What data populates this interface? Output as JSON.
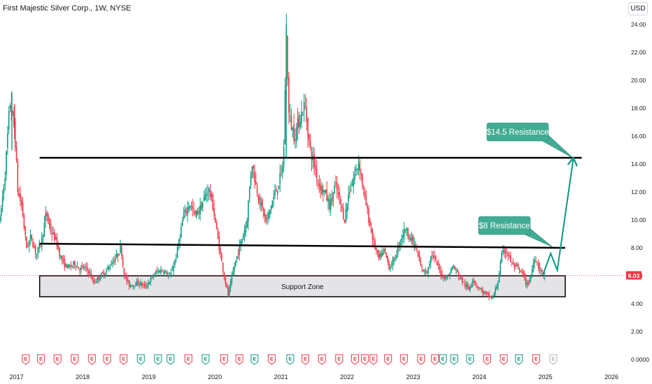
{
  "header": {
    "title": "First Majestic Silver Corp., 1W, NYSE",
    "currency": "USD"
  },
  "colors": {
    "up": "#089981",
    "down": "#f23645",
    "price_line": "#f23645",
    "callout": "#42ab94",
    "arrow": "#089981",
    "earnings_red": "#f23645",
    "earnings_green": "#089981"
  },
  "chart_data": {
    "type": "candlestick",
    "symbol": "First Majestic Silver Corp.",
    "interval": "1W",
    "exchange": "NYSE",
    "currency": "USD",
    "last_price": 6.03,
    "last_price_label": "6.03",
    "ylim": [
      0,
      25
    ],
    "xlim": [
      2016.75,
      2026.2
    ],
    "y_ticks": [
      {
        "value": 0,
        "label": "0.0000"
      },
      {
        "value": 2,
        "label": "2.00"
      },
      {
        "value": 4,
        "label": "4.00"
      },
      {
        "value": 6,
        "label": "6.00"
      },
      {
        "value": 8,
        "label": "8.00"
      },
      {
        "value": 10,
        "label": "10.00"
      },
      {
        "value": 12,
        "label": "12.00"
      },
      {
        "value": 14,
        "label": "14.00"
      },
      {
        "value": 16,
        "label": "16.00"
      },
      {
        "value": 18,
        "label": "18.00"
      },
      {
        "value": 20,
        "label": "20.00"
      },
      {
        "value": 22,
        "label": "22.00"
      },
      {
        "value": 24,
        "label": "24.00"
      }
    ],
    "x_ticks": [
      {
        "value": 2017,
        "label": "2017"
      },
      {
        "value": 2018,
        "label": "2018"
      },
      {
        "value": 2019,
        "label": "2019"
      },
      {
        "value": 2020,
        "label": "2020"
      },
      {
        "value": 2021,
        "label": "2021"
      },
      {
        "value": 2022,
        "label": "2022"
      },
      {
        "value": 2023,
        "label": "2023"
      },
      {
        "value": 2024,
        "label": "2024"
      },
      {
        "value": 2025,
        "label": "2025"
      },
      {
        "value": 2026,
        "label": "2026"
      }
    ],
    "price_path": [
      [
        2016.75,
        10.0
      ],
      [
        2016.83,
        13.5
      ],
      [
        2016.9,
        18.5
      ],
      [
        2016.97,
        16.5
      ],
      [
        2017.02,
        12.0
      ],
      [
        2017.08,
        11.0
      ],
      [
        2017.15,
        8.0
      ],
      [
        2017.22,
        8.8
      ],
      [
        2017.3,
        7.5
      ],
      [
        2017.38,
        8.6
      ],
      [
        2017.45,
        10.5
      ],
      [
        2017.52,
        9.2
      ],
      [
        2017.6,
        8.5
      ],
      [
        2017.66,
        7.4
      ],
      [
        2017.72,
        6.8
      ],
      [
        2017.8,
        6.6
      ],
      [
        2017.88,
        6.9
      ],
      [
        2017.95,
        6.5
      ],
      [
        2018.02,
        6.6
      ],
      [
        2018.1,
        6.3
      ],
      [
        2018.16,
        5.5
      ],
      [
        2018.25,
        5.9
      ],
      [
        2018.35,
        6.3
      ],
      [
        2018.45,
        7.0
      ],
      [
        2018.52,
        7.4
      ],
      [
        2018.58,
        8.1
      ],
      [
        2018.62,
        6.2
      ],
      [
        2018.7,
        5.3
      ],
      [
        2018.85,
        5.5
      ],
      [
        2018.95,
        5.2
      ],
      [
        2019.02,
        5.7
      ],
      [
        2019.12,
        6.3
      ],
      [
        2019.22,
        6.4
      ],
      [
        2019.32,
        5.9
      ],
      [
        2019.42,
        7.5
      ],
      [
        2019.52,
        10.2
      ],
      [
        2019.62,
        11.2
      ],
      [
        2019.7,
        10.3
      ],
      [
        2019.8,
        11.0
      ],
      [
        2019.9,
        12.3
      ],
      [
        2019.96,
        11.3
      ],
      [
        2020.05,
        8.5
      ],
      [
        2020.12,
        6.5
      ],
      [
        2020.2,
        4.6
      ],
      [
        2020.3,
        6.8
      ],
      [
        2020.4,
        8.5
      ],
      [
        2020.48,
        9.8
      ],
      [
        2020.56,
        14.2
      ],
      [
        2020.62,
        12.5
      ],
      [
        2020.7,
        11.0
      ],
      [
        2020.78,
        9.8
      ],
      [
        2020.86,
        11.2
      ],
      [
        2020.94,
        12.3
      ],
      [
        2021.0,
        13.2
      ],
      [
        2021.04,
        14.5
      ],
      [
        2021.08,
        23.5
      ],
      [
        2021.12,
        17.5
      ],
      [
        2021.2,
        16.0
      ],
      [
        2021.28,
        17.2
      ],
      [
        2021.36,
        18.3
      ],
      [
        2021.44,
        15.0
      ],
      [
        2021.5,
        14.0
      ],
      [
        2021.58,
        12.5
      ],
      [
        2021.66,
        12.0
      ],
      [
        2021.74,
        11.0
      ],
      [
        2021.82,
        12.5
      ],
      [
        2021.9,
        11.2
      ],
      [
        2021.96,
        10.0
      ],
      [
        2022.02,
        11.8
      ],
      [
        2022.1,
        13.0
      ],
      [
        2022.18,
        14.2
      ],
      [
        2022.25,
        12.0
      ],
      [
        2022.33,
        10.0
      ],
      [
        2022.4,
        8.4
      ],
      [
        2022.48,
        7.2
      ],
      [
        2022.56,
        7.8
      ],
      [
        2022.64,
        6.6
      ],
      [
        2022.72,
        7.2
      ],
      [
        2022.8,
        8.5
      ],
      [
        2022.88,
        9.4
      ],
      [
        2022.96,
        8.7
      ],
      [
        2023.04,
        8.0
      ],
      [
        2023.12,
        6.5
      ],
      [
        2023.2,
        6.2
      ],
      [
        2023.28,
        7.6
      ],
      [
        2023.36,
        6.8
      ],
      [
        2023.44,
        6.0
      ],
      [
        2023.52,
        5.9
      ],
      [
        2023.6,
        6.7
      ],
      [
        2023.68,
        6.1
      ],
      [
        2023.76,
        5.5
      ],
      [
        2023.84,
        5.0
      ],
      [
        2023.9,
        5.8
      ],
      [
        2023.96,
        5.3
      ],
      [
        2024.04,
        4.9
      ],
      [
        2024.12,
        4.6
      ],
      [
        2024.2,
        4.4
      ],
      [
        2024.28,
        5.5
      ],
      [
        2024.34,
        7.5
      ],
      [
        2024.4,
        7.9
      ],
      [
        2024.5,
        6.8
      ],
      [
        2024.58,
        6.5
      ],
      [
        2024.66,
        6.1
      ],
      [
        2024.72,
        5.3
      ],
      [
        2024.78,
        6.0
      ],
      [
        2024.84,
        7.4
      ],
      [
        2024.9,
        6.6
      ],
      [
        2024.96,
        6.1
      ],
      [
        2025.0,
        6.03
      ]
    ],
    "candle_overlay": [
      {
        "t": 2016.93,
        "o": 15.5,
        "h": 19.2,
        "l": 15.0,
        "c": 18.6
      },
      {
        "t": 2016.97,
        "o": 18.0,
        "h": 18.3,
        "l": 15.8,
        "c": 16.2
      },
      {
        "t": 2021.08,
        "o": 14.8,
        "h": 24.0,
        "l": 14.5,
        "c": 17.3
      }
    ],
    "annotations": [
      {
        "type": "line",
        "name": "upper resistance line",
        "x1": 2017.35,
        "y1": 14.45,
        "x2": 2025.55,
        "y2": 14.45
      },
      {
        "type": "line",
        "name": "lower resistance line",
        "x1": 2017.35,
        "y1": 8.3,
        "x2": 2025.3,
        "y2": 8.0
      },
      {
        "type": "rect",
        "name": "support zone",
        "x1": 2017.35,
        "x2": 2025.3,
        "y_top": 6.0,
        "y_bottom": 4.5,
        "label": "Support Zone"
      },
      {
        "type": "arrow",
        "name": "projected path",
        "points": [
          [
            2024.96,
            6.03
          ],
          [
            2025.08,
            7.6
          ],
          [
            2025.18,
            6.4
          ],
          [
            2025.42,
            14.3
          ]
        ]
      },
      {
        "type": "callout",
        "name": "14.5 resistance",
        "label": "$14.5 Resistance",
        "anchor_x": 2025.4,
        "anchor_y": 14.5
      },
      {
        "type": "callout",
        "name": "8 resistance",
        "label": "$8 Resistance",
        "anchor_x": 2025.12,
        "anchor_y": 8.0
      }
    ],
    "earnings_markers": [
      {
        "t": 2017.14,
        "label": "E",
        "kind": "red"
      },
      {
        "t": 2017.37,
        "label": "E",
        "kind": "red"
      },
      {
        "t": 2017.62,
        "label": "E",
        "kind": "red"
      },
      {
        "t": 2017.88,
        "label": "E",
        "kind": "red"
      },
      {
        "t": 2018.14,
        "label": "E",
        "kind": "red"
      },
      {
        "t": 2018.37,
        "label": "E",
        "kind": "red"
      },
      {
        "t": 2018.62,
        "label": "E",
        "kind": "red"
      },
      {
        "t": 2018.88,
        "label": "E",
        "kind": "green"
      },
      {
        "t": 2019.14,
        "label": "E",
        "kind": "green"
      },
      {
        "t": 2019.33,
        "label": "E",
        "kind": "green"
      },
      {
        "t": 2019.6,
        "label": "E",
        "kind": "red"
      },
      {
        "t": 2019.86,
        "label": "E",
        "kind": "green"
      },
      {
        "t": 2020.14,
        "label": "E",
        "kind": "red"
      },
      {
        "t": 2020.37,
        "label": "E",
        "kind": "red"
      },
      {
        "t": 2020.6,
        "label": "E",
        "kind": "green"
      },
      {
        "t": 2020.86,
        "label": "E",
        "kind": "red"
      },
      {
        "t": 2021.14,
        "label": "E",
        "kind": "green"
      },
      {
        "t": 2021.37,
        "label": "E",
        "kind": "red"
      },
      {
        "t": 2021.62,
        "label": "E",
        "kind": "red"
      },
      {
        "t": 2021.88,
        "label": "E",
        "kind": "red"
      },
      {
        "t": 2022.12,
        "label": "E",
        "kind": "red"
      },
      {
        "t": 2022.27,
        "label": "E",
        "kind": "red"
      },
      {
        "t": 2022.4,
        "label": "E",
        "kind": "red"
      },
      {
        "t": 2022.62,
        "label": "E",
        "kind": "red"
      },
      {
        "t": 2022.86,
        "label": "E",
        "kind": "red"
      },
      {
        "t": 2023.12,
        "label": "E",
        "kind": "red"
      },
      {
        "t": 2023.33,
        "label": "E",
        "kind": "red"
      },
      {
        "t": 2023.45,
        "label": "E",
        "kind": "green"
      },
      {
        "t": 2023.62,
        "label": "E",
        "kind": "green"
      },
      {
        "t": 2023.86,
        "label": "E",
        "kind": "green"
      },
      {
        "t": 2024.12,
        "label": "E",
        "kind": "red"
      },
      {
        "t": 2024.37,
        "label": "E",
        "kind": "red"
      },
      {
        "t": 2024.6,
        "label": "E",
        "kind": "green"
      },
      {
        "t": 2024.86,
        "label": "E",
        "kind": "red"
      },
      {
        "t": 2025.12,
        "label": "E",
        "kind": "future"
      }
    ]
  }
}
